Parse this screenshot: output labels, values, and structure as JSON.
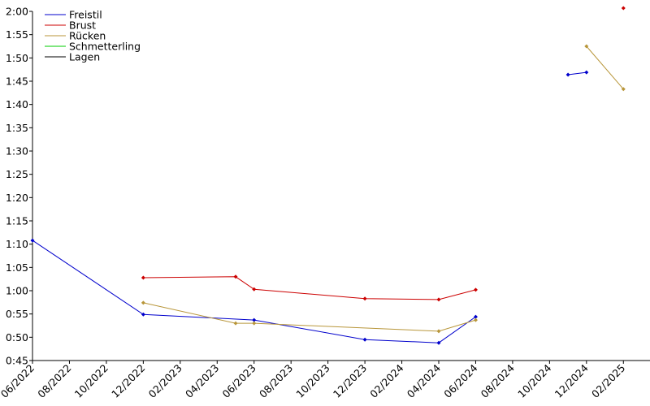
{
  "chart_data": {
    "type": "line",
    "xlim": [
      "06/2022",
      "03/2025"
    ],
    "xticks": [
      "06/2022",
      "08/2022",
      "10/2022",
      "12/2022",
      "02/2023",
      "04/2023",
      "06/2023",
      "08/2023",
      "10/2023",
      "12/2023",
      "02/2024",
      "04/2024",
      "06/2024",
      "08/2024",
      "10/2024",
      "12/2024",
      "02/2025"
    ],
    "ylim": [
      45,
      120
    ],
    "yticks": [
      {
        "value": 45,
        "label": "0:45"
      },
      {
        "value": 50,
        "label": "0:50"
      },
      {
        "value": 55,
        "label": "0:55"
      },
      {
        "value": 60,
        "label": "1:00"
      },
      {
        "value": 65,
        "label": "1:05"
      },
      {
        "value": 70,
        "label": "1:10"
      },
      {
        "value": 75,
        "label": "1:15"
      },
      {
        "value": 80,
        "label": "1:20"
      },
      {
        "value": 85,
        "label": "1:25"
      },
      {
        "value": 90,
        "label": "1:30"
      },
      {
        "value": 95,
        "label": "1:35"
      },
      {
        "value": 100,
        "label": "1:40"
      },
      {
        "value": 105,
        "label": "1:45"
      },
      {
        "value": 110,
        "label": "1:50"
      },
      {
        "value": 115,
        "label": "1:55"
      },
      {
        "value": 120,
        "label": "2:00"
      }
    ],
    "legend": "upper left",
    "series": [
      {
        "name": "Freistil",
        "color": "#0000cc",
        "x": [
          "06/2022",
          "12/2022",
          "06/2023",
          "12/2023",
          "04/2024",
          "06/2024",
          null,
          "11/2024",
          "12/2024"
        ],
        "values": [
          70.8,
          54.9,
          53.7,
          49.5,
          48.8,
          54.4,
          null,
          106.4,
          106.9
        ]
      },
      {
        "name": "Brust",
        "color": "#cc0000",
        "x": [
          "12/2022",
          "05/2023",
          "06/2023",
          "12/2023",
          "04/2024",
          "06/2024",
          null,
          "02/2025"
        ],
        "values": [
          62.8,
          63.0,
          60.3,
          58.3,
          58.1,
          60.2,
          null,
          120.7
        ]
      },
      {
        "name": "Rücken",
        "color": "#b8963a",
        "x": [
          "12/2022",
          "05/2023",
          "06/2023",
          "04/2024",
          "06/2024",
          null,
          "12/2024",
          "02/2025"
        ],
        "values": [
          57.4,
          53.0,
          53.0,
          51.3,
          53.7,
          null,
          112.5,
          103.3
        ]
      },
      {
        "name": "Schmetterling",
        "color": "#00cc00",
        "x": [],
        "values": []
      },
      {
        "name": "Lagen",
        "color": "#000000",
        "x": [],
        "values": []
      }
    ]
  }
}
